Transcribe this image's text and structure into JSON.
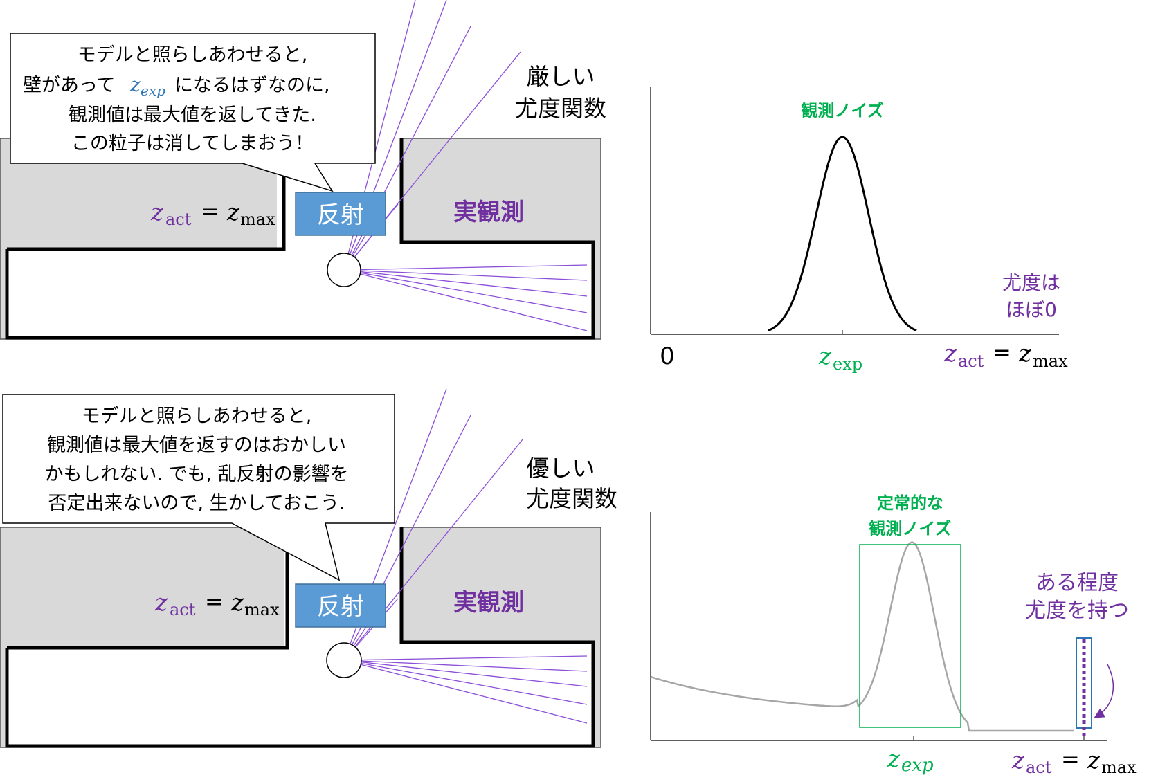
{
  "colors": {
    "purple": "#7030A0",
    "green": "#00B050",
    "blue_box": "#5B9BD5",
    "blue_text": "#2E75B6",
    "wall_fill": "#D9D9D9",
    "ray": "#8B4FD8"
  },
  "top": {
    "bubble_line1": "モデルと照らしあわせると,",
    "bubble_line2a": "壁があって",
    "bubble_line2_var": "z",
    "bubble_line2_sub": "exp",
    "bubble_line2b": "になるはずなのに,",
    "bubble_line3": "観測値は最大値を返してきた.",
    "bubble_line4": "この粒子は消してしまおう！",
    "func_line1": "厳しい",
    "func_line2": "尤度関数",
    "reflect": "反射",
    "actual": "実観測",
    "zact_lhs": "z",
    "zact_lhs_sub": "act",
    "zact_eq": "=",
    "zact_rhs": "z",
    "zact_rhs_sub": "max"
  },
  "top_graph": {
    "noise_label": "観測ノイズ",
    "likelihood_line1": "尤度は",
    "likelihood_line2": "ほぼ0",
    "zero": "0",
    "zexp": "z",
    "zexp_sub": "exp",
    "zact": "z",
    "zact_sub": "act",
    "eq": "=",
    "zmax": "z",
    "zmax_sub": "max"
  },
  "bottom": {
    "bubble_line1": "モデルと照らしあわせると,",
    "bubble_line2": "観測値は最大値を返すのはおかしい",
    "bubble_line3": "かもしれない. でも, 乱反射の影響を",
    "bubble_line4": "否定出来ないので, 生かしておこう.",
    "func_line1": "優しい",
    "func_line2": "尤度関数",
    "reflect": "反射",
    "actual": "実観測",
    "zact_lhs": "z",
    "zact_lhs_sub": "act",
    "zact_eq": "=",
    "zact_rhs": "z",
    "zact_rhs_sub": "max"
  },
  "bottom_graph": {
    "noise_line1": "定常的な",
    "noise_line2": "観測ノイズ",
    "likelihood_line1": "ある程度",
    "likelihood_line2": "尤度を持つ",
    "zexp": "z",
    "zexp_sub": "exp",
    "zact": "z",
    "zact_sub": "act",
    "eq": "=",
    "zmax": "z",
    "zmax_sub": "max"
  }
}
